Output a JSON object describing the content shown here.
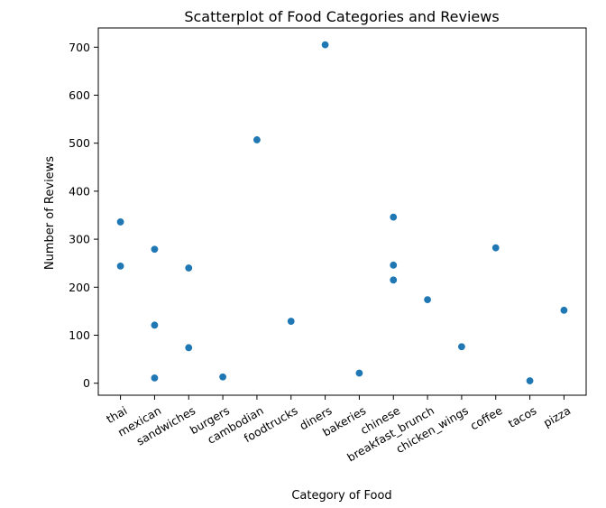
{
  "chart_data": {
    "type": "scatter",
    "title": "Scatterplot of Food Categories and Reviews",
    "xlabel": "Category of Food",
    "ylabel": "Number of Reviews",
    "categories": [
      "thai",
      "mexican",
      "sandwiches",
      "burgers",
      "cambodian",
      "foodtrucks",
      "diners",
      "bakeries",
      "chinese",
      "breakfast_brunch",
      "chicken_wings",
      "coffee",
      "tacos",
      "pizza"
    ],
    "yticks": [
      0,
      100,
      200,
      300,
      400,
      500,
      600,
      700
    ],
    "ylim": [
      -25,
      740
    ],
    "grid": false,
    "marker_color": "#1f77b4",
    "points": [
      {
        "x": "thai",
        "y": 336
      },
      {
        "x": "thai",
        "y": 244
      },
      {
        "x": "mexican",
        "y": 279
      },
      {
        "x": "mexican",
        "y": 121
      },
      {
        "x": "mexican",
        "y": 11
      },
      {
        "x": "sandwiches",
        "y": 240
      },
      {
        "x": "sandwiches",
        "y": 74
      },
      {
        "x": "burgers",
        "y": 13
      },
      {
        "x": "cambodian",
        "y": 507
      },
      {
        "x": "foodtrucks",
        "y": 129
      },
      {
        "x": "diners",
        "y": 705
      },
      {
        "x": "bakeries",
        "y": 21
      },
      {
        "x": "chinese",
        "y": 346
      },
      {
        "x": "chinese",
        "y": 246
      },
      {
        "x": "chinese",
        "y": 215
      },
      {
        "x": "breakfast_brunch",
        "y": 174
      },
      {
        "x": "chicken_wings",
        "y": 76
      },
      {
        "x": "coffee",
        "y": 282
      },
      {
        "x": "tacos",
        "y": 5
      },
      {
        "x": "pizza",
        "y": 152
      }
    ]
  }
}
